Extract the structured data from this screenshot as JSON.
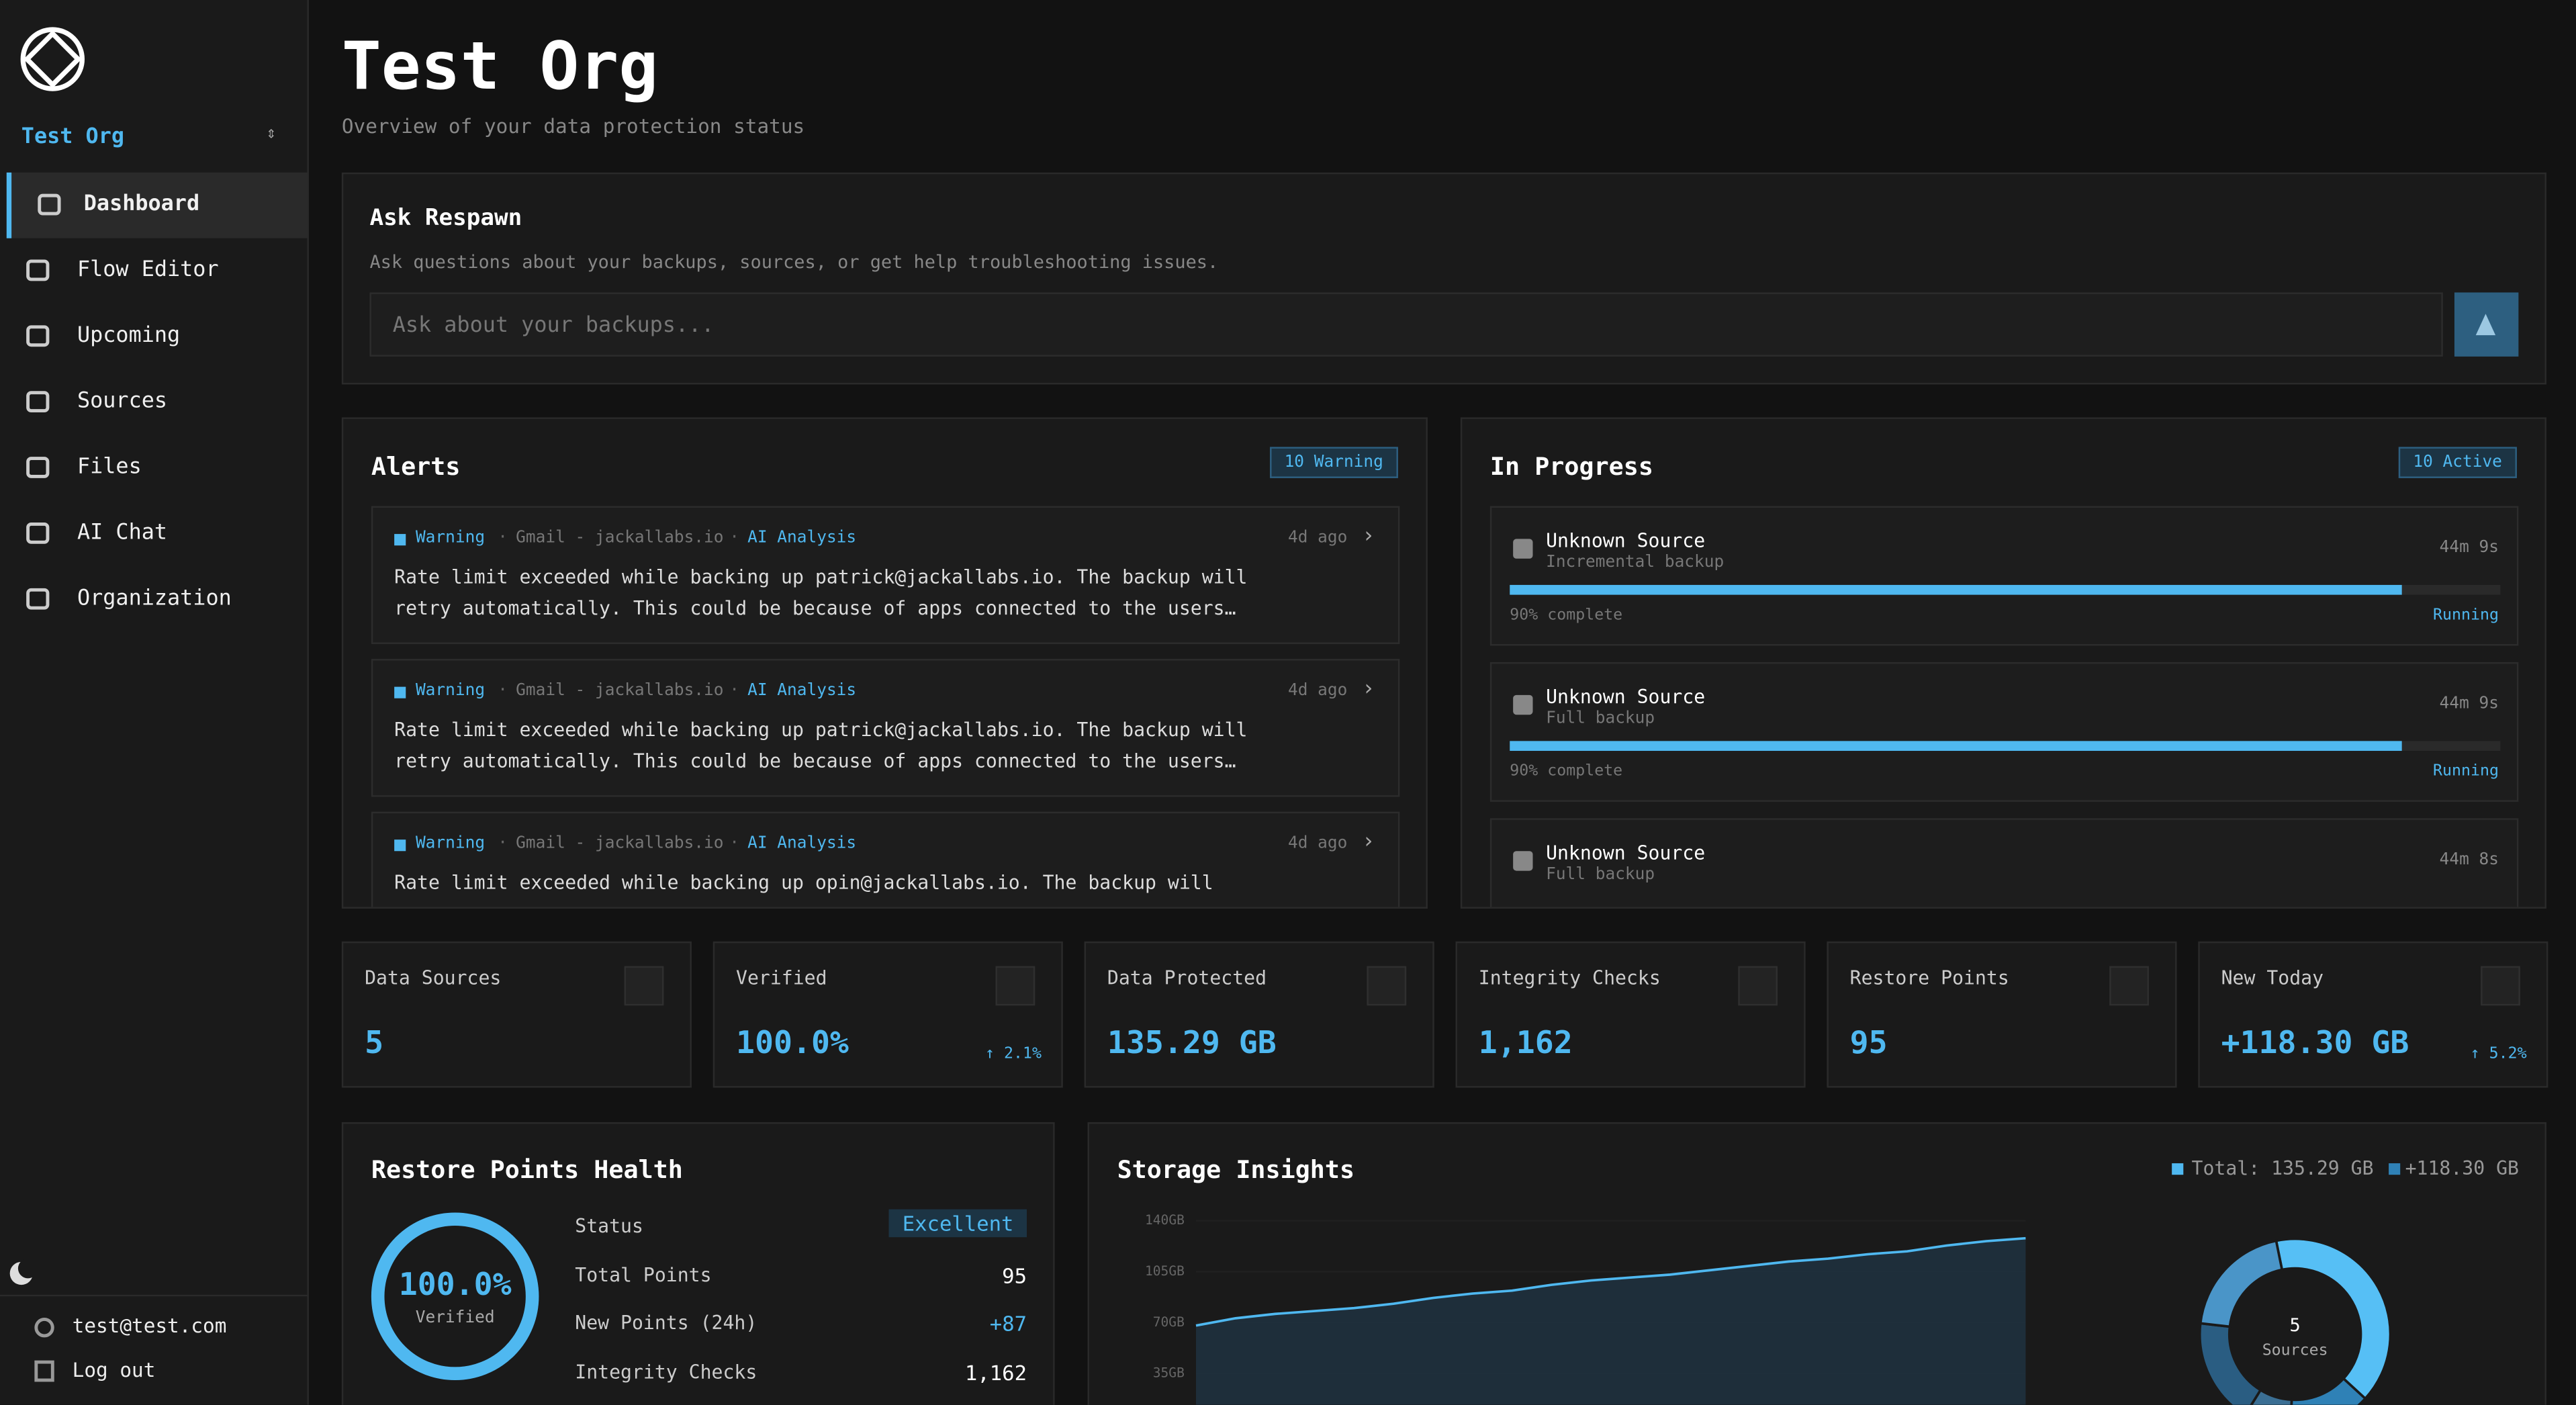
{
  "sidebar": {
    "org": "Test Org",
    "nav": [
      "Dashboard",
      "Flow Editor",
      "Upcoming",
      "Sources",
      "Files",
      "AI Chat",
      "Organization"
    ],
    "active": 0,
    "email": "test@test.com",
    "logout": "Log out"
  },
  "header": {
    "title": "Test Org",
    "subtitle": "Overview of your data protection status"
  },
  "ask": {
    "title": "Ask Respawn",
    "description": "Ask questions about your backups, sources, or get help troubleshooting issues.",
    "placeholder": "Ask about your backups..."
  },
  "alerts": {
    "title": "Alerts",
    "badge": "10 Warning",
    "items": [
      {
        "level": "Warning",
        "source": "Gmail - jackallabs.io",
        "tag": "AI Analysis",
        "time": "4d ago",
        "message": "Rate limit exceeded while backing up patrick@jackallabs.io. The backup will retry automatically. This could be because of apps connected to the users…"
      },
      {
        "level": "Warning",
        "source": "Gmail - jackallabs.io",
        "tag": "AI Analysis",
        "time": "4d ago",
        "message": "Rate limit exceeded while backing up patrick@jackallabs.io. The backup will retry automatically. This could be because of apps connected to the users…"
      },
      {
        "level": "Warning",
        "source": "Gmail - jackallabs.io",
        "tag": "AI Analysis",
        "time": "4d ago",
        "message": "Rate limit exceeded while backing up opin@jackallabs.io. The backup will"
      }
    ]
  },
  "in_progress": {
    "title": "In Progress",
    "badge": "10 Active",
    "items": [
      {
        "name": "Unknown Source",
        "type": "Incremental backup",
        "time": "44m 9s",
        "progress": 90,
        "progress_label": "90% complete",
        "status": "Running"
      },
      {
        "name": "Unknown Source",
        "type": "Full backup",
        "time": "44m 9s",
        "progress": 90,
        "progress_label": "90% complete",
        "status": "Running"
      },
      {
        "name": "Unknown Source",
        "type": "Full backup",
        "time": "44m 8s"
      }
    ]
  },
  "stats": [
    {
      "label": "Data Sources",
      "value": "5"
    },
    {
      "label": "Verified",
      "value": "100.0%",
      "change": "↑ 2.1%"
    },
    {
      "label": "Data Protected",
      "value": "135.29 GB"
    },
    {
      "label": "Integrity Checks",
      "value": "1,162"
    },
    {
      "label": "Restore Points",
      "value": "95"
    },
    {
      "label": "New Today",
      "value": "+118.30 GB",
      "change": "↑ 5.2%"
    }
  ],
  "health": {
    "title": "Restore Points Health",
    "gauge": 100,
    "gauge_label": "100.0%",
    "gauge_sublabel": "Verified",
    "rows": [
      {
        "label": "Status",
        "value": "Excellent"
      },
      {
        "label": "Total Points",
        "value": "95"
      },
      {
        "label": "New Points (24h)",
        "value": "+87"
      },
      {
        "label": "Integrity Checks",
        "value": "1,162"
      }
    ]
  },
  "storage": {
    "title": "Storage Insights",
    "legend": [
      "Total: 135.29 GB",
      "+118.30 GB"
    ],
    "chart_data": {
      "type": "line",
      "ylim": [
        0,
        140
      ],
      "yticks": [
        {
          "value": 35,
          "label": "35GB"
        },
        {
          "value": 70,
          "label": "70GB"
        },
        {
          "value": 105,
          "label": "105GB"
        },
        {
          "value": 140,
          "label": "140GB"
        }
      ],
      "color": "#4fb8f0",
      "values": [
        68,
        73,
        76,
        78,
        80,
        83,
        87,
        90,
        92,
        96,
        99,
        101,
        103,
        106,
        109,
        112,
        114,
        117,
        119,
        123,
        126,
        128
      ]
    },
    "donut": {
      "type": "pie",
      "center_value": "5",
      "center_label": "Sources",
      "values": [
        40,
        14,
        8,
        18,
        20
      ],
      "colors": [
        "#56bff5",
        "#2f81b6",
        "#3b6f94",
        "#2a5d82",
        "#4a95c8"
      ]
    }
  }
}
